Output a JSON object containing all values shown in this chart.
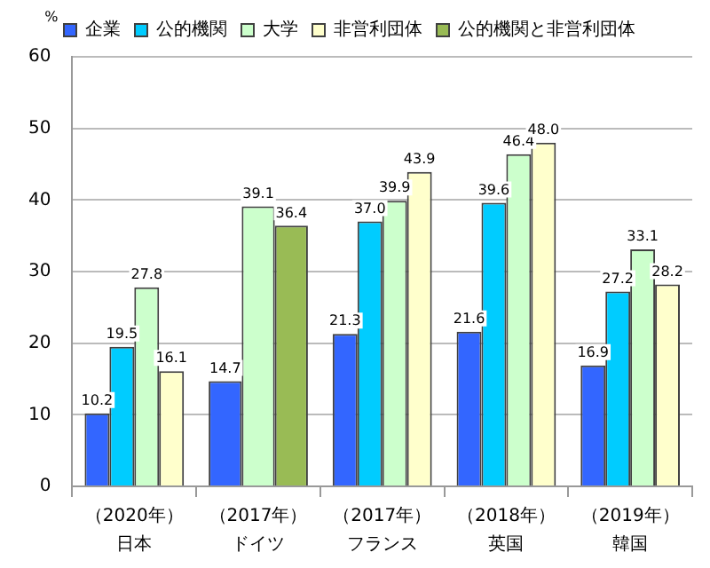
{
  "chart_data": {
    "type": "bar",
    "ylabel": "%",
    "categories": [
      "（2020年）日本",
      "（2017年）ドイツ",
      "（2017年）フランス",
      "（2018年）英国",
      "（2019年）韓国"
    ],
    "series": [
      {
        "name": "企業",
        "color": "#3366ff",
        "values": [
          10.2,
          14.7,
          21.3,
          21.6,
          16.9
        ],
        "value_labels": [
          "10.2",
          "14.7",
          "21.3",
          "21.6",
          "16.9"
        ]
      },
      {
        "name": "公的機関",
        "color": "#00ccff",
        "values": [
          19.5,
          null,
          37.0,
          39.6,
          27.2
        ],
        "value_labels": [
          "19.5",
          null,
          "37.0",
          "39.6",
          "27.2"
        ]
      },
      {
        "name": "大学",
        "color": "#ccffcc",
        "values": [
          27.8,
          39.1,
          39.9,
          46.4,
          33.1
        ],
        "value_labels": [
          "27.8",
          "39.1",
          "39.9",
          "46.4",
          "33.1"
        ]
      },
      {
        "name": "非営利団体",
        "color": "#ffffcc",
        "values": [
          16.1,
          null,
          43.9,
          48.0,
          28.2
        ],
        "value_labels": [
          "16.1",
          null,
          "43.9",
          "48.0",
          "28.2"
        ]
      },
      {
        "name": "公的機関と非営利団体",
        "color": "#99bb55",
        "values": [
          null,
          36.4,
          null,
          null,
          null
        ],
        "value_labels": [
          null,
          "36.4",
          null,
          null,
          null
        ]
      }
    ],
    "ylim": [
      0,
      60
    ],
    "yticks": [
      0,
      10,
      20,
      30,
      40,
      50,
      60
    ],
    "grid": "y",
    "legend": "top"
  }
}
